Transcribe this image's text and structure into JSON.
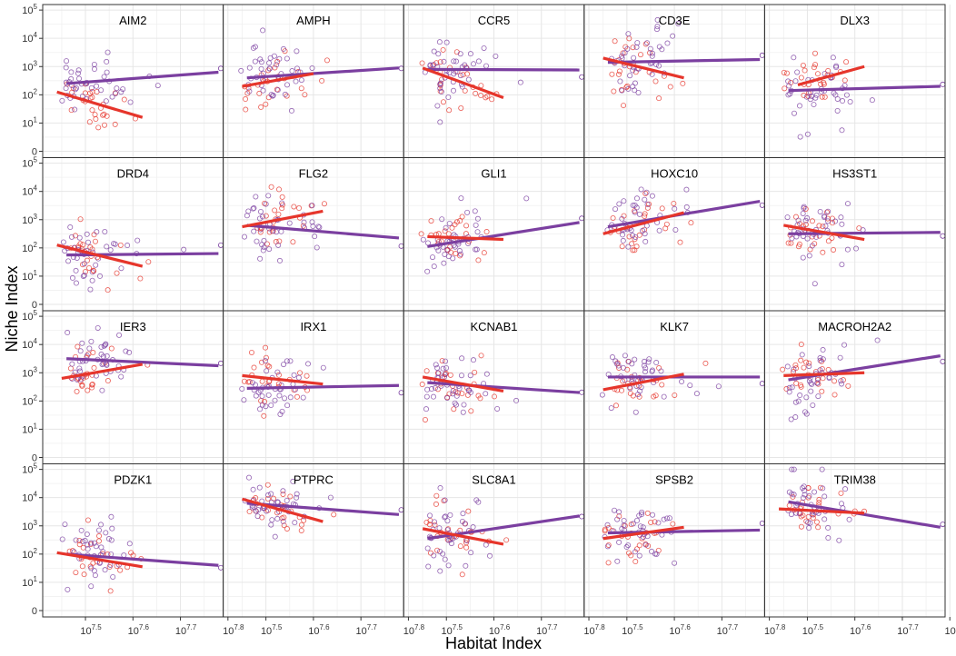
{
  "chart_data": {
    "type": "scatter",
    "title": "",
    "xlabel": "Habitat Index",
    "ylabel": "Niche Index",
    "x_scale": "log10",
    "y_scale": "pseudo-log10",
    "xlim_log10": [
      7.41,
      7.79
    ],
    "ylim_log10": [
      0,
      5.1
    ],
    "x_ticks_log10": [
      7.5,
      7.6,
      7.7,
      7.8
    ],
    "x_tick_labels": [
      "10^7.5",
      "10^7.6",
      "10^7.7",
      "10^7.8"
    ],
    "y_ticks_log10": [
      0,
      1,
      2,
      3,
      4,
      5
    ],
    "y_tick_labels": [
      "0",
      "10^1",
      "10^2",
      "10^3",
      "10^4",
      "10^5"
    ],
    "grid": true,
    "layout": {
      "rows": 4,
      "cols": 5
    },
    "colors": {
      "red": "#e6352b",
      "purple": "#7b3fa0",
      "panel_border": "#333333",
      "grid": "#e6e6e6"
    },
    "series_names": [
      "red",
      "purple"
    ],
    "panels": [
      {
        "name": "AIM2",
        "red_fit": [
          [
            7.44,
            2.1
          ],
          [
            7.62,
            1.2
          ]
        ],
        "purple_fit": [
          [
            7.46,
            2.4
          ],
          [
            7.78,
            2.8
          ]
        ]
      },
      {
        "name": "AMPH",
        "red_fit": [
          [
            7.45,
            2.3
          ],
          [
            7.6,
            2.75
          ]
        ],
        "purple_fit": [
          [
            7.46,
            2.6
          ],
          [
            7.78,
            2.95
          ]
        ]
      },
      {
        "name": "CCR5",
        "red_fit": [
          [
            7.45,
            2.95
          ],
          [
            7.62,
            1.9
          ]
        ],
        "purple_fit": [
          [
            7.46,
            2.9
          ],
          [
            7.78,
            2.88
          ]
        ]
      },
      {
        "name": "CD3E",
        "red_fit": [
          [
            7.45,
            3.3
          ],
          [
            7.62,
            2.6
          ]
        ],
        "purple_fit": [
          [
            7.46,
            3.15
          ],
          [
            7.78,
            3.25
          ]
        ]
      },
      {
        "name": "DLX3",
        "red_fit": [
          [
            7.48,
            2.35
          ],
          [
            7.62,
            3.0
          ]
        ],
        "purple_fit": [
          [
            7.46,
            2.15
          ],
          [
            7.78,
            2.3
          ]
        ]
      },
      {
        "name": "DRD4",
        "red_fit": [
          [
            7.44,
            2.1
          ],
          [
            7.62,
            1.35
          ]
        ],
        "purple_fit": [
          [
            7.46,
            1.75
          ],
          [
            7.78,
            1.8
          ]
        ]
      },
      {
        "name": "FLG2",
        "red_fit": [
          [
            7.45,
            2.75
          ],
          [
            7.62,
            3.3
          ]
        ],
        "purple_fit": [
          [
            7.46,
            2.8
          ],
          [
            7.78,
            2.35
          ]
        ]
      },
      {
        "name": "GLI1",
        "red_fit": [
          [
            7.46,
            2.4
          ],
          [
            7.62,
            2.3
          ]
        ],
        "purple_fit": [
          [
            7.46,
            2.05
          ],
          [
            7.78,
            2.9
          ]
        ]
      },
      {
        "name": "HOXC10",
        "red_fit": [
          [
            7.45,
            2.5
          ],
          [
            7.62,
            3.25
          ]
        ],
        "purple_fit": [
          [
            7.46,
            2.75
          ],
          [
            7.78,
            3.65
          ]
        ]
      },
      {
        "name": "HS3ST1",
        "red_fit": [
          [
            7.45,
            2.8
          ],
          [
            7.62,
            2.3
          ]
        ],
        "purple_fit": [
          [
            7.46,
            2.5
          ],
          [
            7.78,
            2.55
          ]
        ]
      },
      {
        "name": "IER3",
        "red_fit": [
          [
            7.45,
            2.8
          ],
          [
            7.62,
            3.3
          ]
        ],
        "purple_fit": [
          [
            7.46,
            3.5
          ],
          [
            7.78,
            3.25
          ]
        ]
      },
      {
        "name": "IRX1",
        "red_fit": [
          [
            7.45,
            2.9
          ],
          [
            7.62,
            2.6
          ]
        ],
        "purple_fit": [
          [
            7.46,
            2.45
          ],
          [
            7.78,
            2.55
          ]
        ]
      },
      {
        "name": "KCNAB1",
        "red_fit": [
          [
            7.45,
            2.85
          ],
          [
            7.62,
            2.35
          ]
        ],
        "purple_fit": [
          [
            7.46,
            2.65
          ],
          [
            7.78,
            2.3
          ]
        ]
      },
      {
        "name": "KLK7",
        "red_fit": [
          [
            7.45,
            2.4
          ],
          [
            7.62,
            2.95
          ]
        ],
        "purple_fit": [
          [
            7.46,
            2.85
          ],
          [
            7.78,
            2.85
          ]
        ]
      },
      {
        "name": "MACROH2A2",
        "red_fit": [
          [
            7.45,
            2.9
          ],
          [
            7.62,
            3.0
          ]
        ],
        "purple_fit": [
          [
            7.46,
            2.75
          ],
          [
            7.78,
            3.6
          ]
        ]
      },
      {
        "name": "PDZK1",
        "red_fit": [
          [
            7.44,
            2.05
          ],
          [
            7.62,
            1.55
          ]
        ],
        "purple_fit": [
          [
            7.46,
            2.0
          ],
          [
            7.78,
            1.6
          ]
        ]
      },
      {
        "name": "PTPRC",
        "red_fit": [
          [
            7.45,
            3.95
          ],
          [
            7.62,
            3.15
          ]
        ],
        "purple_fit": [
          [
            7.46,
            3.8
          ],
          [
            7.78,
            3.4
          ]
        ]
      },
      {
        "name": "SLC8A1",
        "red_fit": [
          [
            7.45,
            2.9
          ],
          [
            7.62,
            2.35
          ]
        ],
        "purple_fit": [
          [
            7.46,
            2.55
          ],
          [
            7.78,
            3.35
          ]
        ]
      },
      {
        "name": "SPSB2",
        "red_fit": [
          [
            7.45,
            2.55
          ],
          [
            7.62,
            2.95
          ]
        ],
        "purple_fit": [
          [
            7.46,
            2.75
          ],
          [
            7.78,
            2.85
          ]
        ]
      },
      {
        "name": "TRIM38",
        "red_fit": [
          [
            7.44,
            3.6
          ],
          [
            7.62,
            3.45
          ]
        ],
        "purple_fit": [
          [
            7.46,
            3.85
          ],
          [
            7.78,
            2.95
          ]
        ]
      }
    ]
  }
}
